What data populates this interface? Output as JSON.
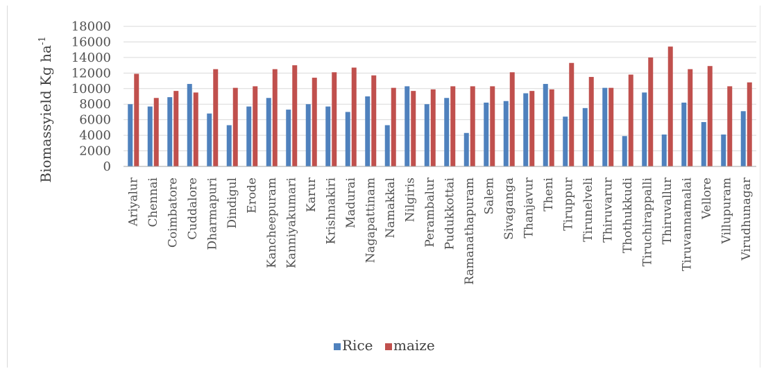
{
  "chart_data": {
    "type": "bar",
    "ylabel": "Biomassyield Kg ha",
    "ylabel_superscript": "-1",
    "ylim": [
      0,
      18000
    ],
    "yticks": [
      "0",
      "2000",
      "4000",
      "6000",
      "8000",
      "10000",
      "12000",
      "14000",
      "16000",
      "18000"
    ],
    "grid": true,
    "legend_position": "bottom",
    "categories": [
      "Ariyalur",
      "Chennai",
      "Coimbatore",
      "Cuddalore",
      "Dharmapuri",
      "Dindigul",
      "Erode",
      "Kancheepuram",
      "Kanniyakumari",
      "Karur",
      "Krishnakiri",
      "Madurai",
      "Nagapattinam",
      "Namakkal",
      "Nilgiris",
      "Perambalur",
      "Pudukkottai",
      "Ramanathapuram",
      "Salem",
      "Sivaganga",
      "Thanjavur",
      "Theni",
      "Tiruppur",
      "Tirunelveli",
      "Thiruvarur",
      "Thothukkudi",
      "Tiruchirappalli",
      "Thiruvallur",
      "Tiruvannamalai",
      "Vellore",
      "Villupuram",
      "Virudhunagar"
    ],
    "series": [
      {
        "name": "Rice",
        "color": "#4f81bd",
        "values": [
          8000,
          7700,
          8900,
          10600,
          6800,
          5300,
          7700,
          8800,
          7300,
          8000,
          7700,
          7000,
          9000,
          5300,
          10300,
          8000,
          8800,
          4300,
          8200,
          8400,
          9400,
          10600,
          6400,
          7500,
          10100,
          3900,
          9500,
          4100,
          8200,
          5700,
          4100,
          7100
        ]
      },
      {
        "name": "maize",
        "color": "#c0504d",
        "values": [
          11900,
          8800,
          9700,
          9500,
          12500,
          10100,
          10300,
          12500,
          13000,
          11400,
          12100,
          12700,
          11700,
          10100,
          9700,
          9900,
          10300,
          10300,
          10300,
          12100,
          9700,
          9900,
          13300,
          11500,
          10100,
          11800,
          14000,
          15400,
          12500,
          12900,
          10300,
          10800
        ]
      }
    ]
  }
}
